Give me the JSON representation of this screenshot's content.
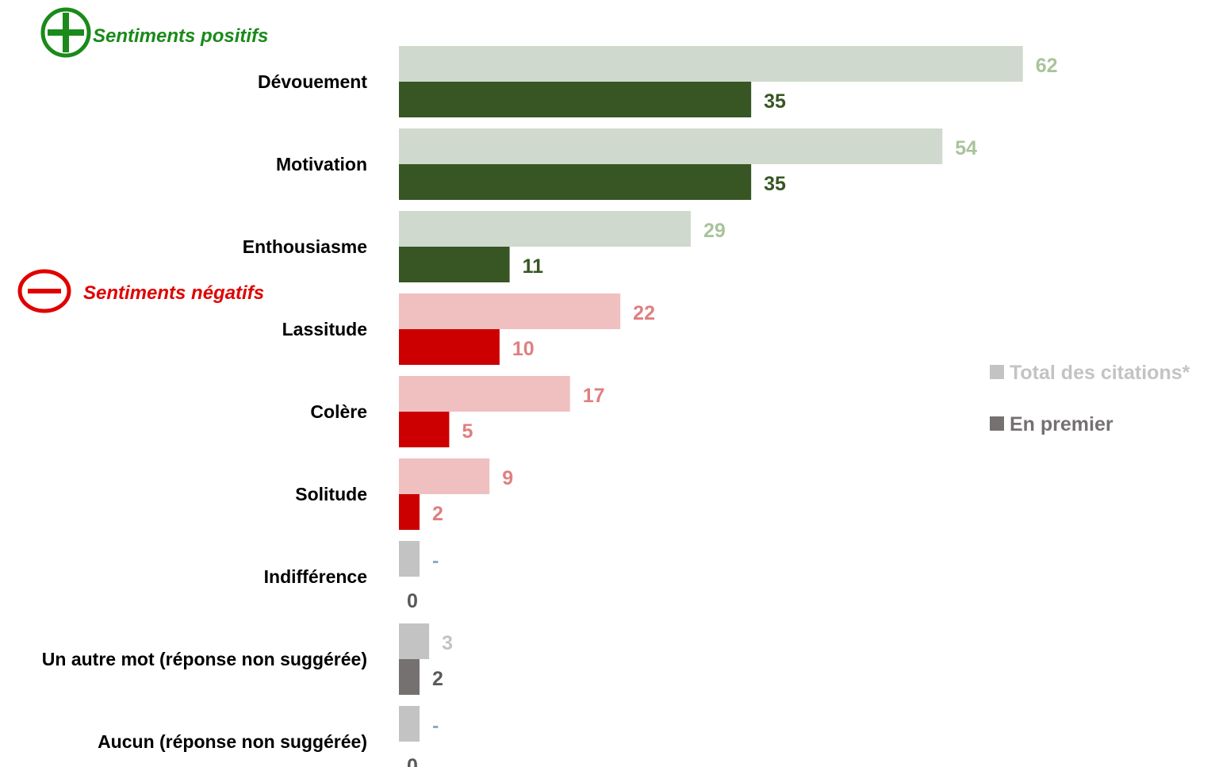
{
  "chart_data": {
    "type": "bar",
    "orientation": "horizontal",
    "xlim": [
      0,
      62
    ],
    "sections": [
      {
        "label": "Sentiments positifs",
        "icon": "plus-circle-icon",
        "color": "#1a8a1a"
      },
      {
        "label": "Sentiments négatifs",
        "icon": "minus-circle-icon",
        "color": "#e00000"
      }
    ],
    "series": [
      {
        "name": "Total des citations*",
        "legend_color": "#c3c3c3"
      },
      {
        "name": "En premier",
        "legend_color": "#767171"
      }
    ],
    "categories": [
      {
        "label": "Dévouement",
        "group": "positive",
        "total": 62,
        "first": 35,
        "total_label": "62",
        "first_label": "35"
      },
      {
        "label": "Motivation",
        "group": "positive",
        "total": 54,
        "first": 35,
        "total_label": "54",
        "first_label": "35"
      },
      {
        "label": "Enthousiasme",
        "group": "positive",
        "total": 29,
        "first": 11,
        "total_label": "29",
        "first_label": "11"
      },
      {
        "label": "Lassitude",
        "group": "negative",
        "total": 22,
        "first": 10,
        "total_label": "22",
        "first_label": "10"
      },
      {
        "label": "Colère",
        "group": "negative",
        "total": 17,
        "first": 5,
        "total_label": "17",
        "first_label": "5"
      },
      {
        "label": "Solitude",
        "group": "negative",
        "total": 9,
        "first": 2,
        "total_label": "9",
        "first_label": "2"
      },
      {
        "label": "Indifférence",
        "group": "neutral",
        "total": 0,
        "first": 0,
        "total_label": "-",
        "first_label": "0"
      },
      {
        "label": "Un autre mot (réponse non suggérée)",
        "group": "neutral",
        "total": 3,
        "first": 2,
        "total_label": "3",
        "first_label": "2"
      },
      {
        "label": "Aucun (réponse non suggérée)",
        "group": "neutral",
        "total": 0,
        "first": 0,
        "total_label": "-",
        "first_label": "0"
      }
    ],
    "colors": {
      "positive": {
        "total_bar": "#d0d9cd",
        "first_bar": "#375623",
        "total_text": "#a9c39b",
        "first_text": "#375623"
      },
      "negative": {
        "total_bar": "#f0c0c0",
        "first_bar": "#cc0000",
        "total_text": "#e07f7f",
        "first_text": "#e07f7f"
      },
      "neutral": {
        "total_bar": "#c3c3c3",
        "first_bar": "#767171",
        "total_text": "#c3c3c3",
        "first_text": "#595959",
        "dash_text": "#8ea9c8"
      }
    }
  }
}
